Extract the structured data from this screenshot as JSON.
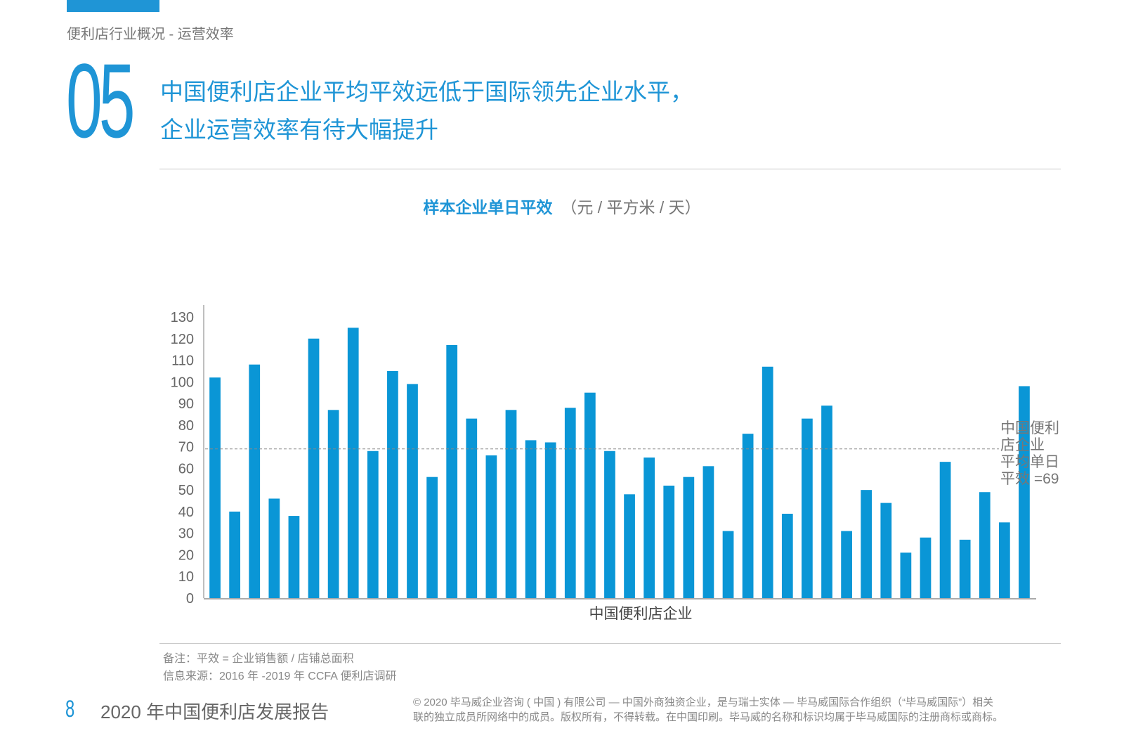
{
  "header": {
    "section_label": "便利店行业概况 - 运营效率",
    "section_number": "05",
    "headline_line1": "中国便利店企业平均平效远低于国际领先企业水平，",
    "headline_line2": "企业运营效率有待大幅提升"
  },
  "colors": {
    "accent": "#1f95d6",
    "bar": "#0a96d6",
    "axis": "#aaaaaa",
    "avg_line": "#888888"
  },
  "chart_data": {
    "type": "bar",
    "title": "样本企业单日平效",
    "unit": "（元 / 平方米 / 天）",
    "xlabel": "中国便利店企业",
    "ylabel": "",
    "ylim": [
      0,
      130
    ],
    "yticks": [
      0,
      10,
      20,
      30,
      40,
      50,
      60,
      70,
      80,
      90,
      100,
      110,
      120,
      130
    ],
    "grid": false,
    "values": [
      102,
      40,
      108,
      46,
      38,
      120,
      87,
      125,
      68,
      105,
      99,
      56,
      117,
      83,
      66,
      87,
      73,
      72,
      88,
      95,
      68,
      48,
      65,
      52,
      56,
      61,
      31,
      76,
      107,
      39,
      83,
      89,
      31,
      50,
      44,
      21,
      28,
      63,
      27,
      49,
      35,
      98
    ],
    "average": {
      "value": 69,
      "label_lines": [
        "中国便利",
        "店企业",
        "平均单日",
        "平效 =69"
      ]
    }
  },
  "notes": {
    "remark": "备注：平效 = 企业销售额 / 店铺总面积",
    "source": "信息来源：2016 年 -2019 年 CCFA 便利店调研"
  },
  "footer": {
    "page_number": "8",
    "report_title": "2020 年中国便利店发展报告",
    "copyright_line1": "© 2020 毕马威企业咨询 ( 中国 ) 有限公司 — 中国外商独资企业，是与瑞士实体 — 毕马威国际合作组织（“毕马威国际”）相关",
    "copyright_line2": "联的独立成员所网络中的成员。版权所有，不得转载。在中国印刷。毕马威的名称和标识均属于毕马威国际的注册商标或商标。"
  }
}
